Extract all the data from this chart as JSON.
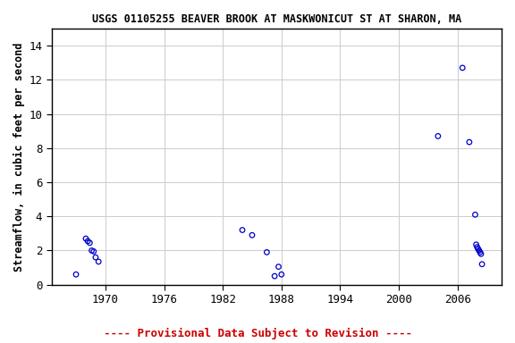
{
  "title": "USGS 01105255 BEAVER BROOK AT MASKWONICUT ST AT SHARON, MA",
  "xlabel": "",
  "ylabel": "Streamflow, in cubic feet per second",
  "xlim": [
    1964.5,
    2010.5
  ],
  "ylim": [
    0,
    15
  ],
  "xticks": [
    1970,
    1976,
    1982,
    1988,
    1994,
    2000,
    2006
  ],
  "yticks": [
    0,
    2,
    4,
    6,
    8,
    10,
    12,
    14
  ],
  "x_data": [
    1967.0,
    1968.0,
    1968.2,
    1968.4,
    1968.6,
    1968.8,
    1969.0,
    1969.3,
    1984.0,
    1985.0,
    1986.5,
    1987.3,
    1987.7,
    1988.0,
    2004.0,
    2006.5,
    2007.2,
    2007.8,
    2007.9,
    2008.0,
    2008.1,
    2008.2,
    2008.3,
    2008.4,
    2008.5
  ],
  "y_data": [
    0.6,
    2.7,
    2.55,
    2.45,
    2.0,
    1.95,
    1.6,
    1.35,
    3.2,
    2.9,
    1.9,
    0.5,
    1.05,
    0.6,
    8.7,
    12.7,
    8.35,
    4.1,
    2.35,
    2.2,
    2.1,
    2.0,
    1.9,
    1.8,
    1.2
  ],
  "marker_color": "#0000CC",
  "marker_size": 4,
  "marker_style": "o",
  "marker_facecolor": "none",
  "grid_color": "#cccccc",
  "background_color": "#ffffff",
  "footnote": "---- Provisional Data Subject to Revision ----",
  "footnote_color": "#cc0000",
  "title_fontsize": 8.5,
  "axis_label_fontsize": 8.5,
  "tick_fontsize": 9,
  "footnote_fontsize": 9
}
